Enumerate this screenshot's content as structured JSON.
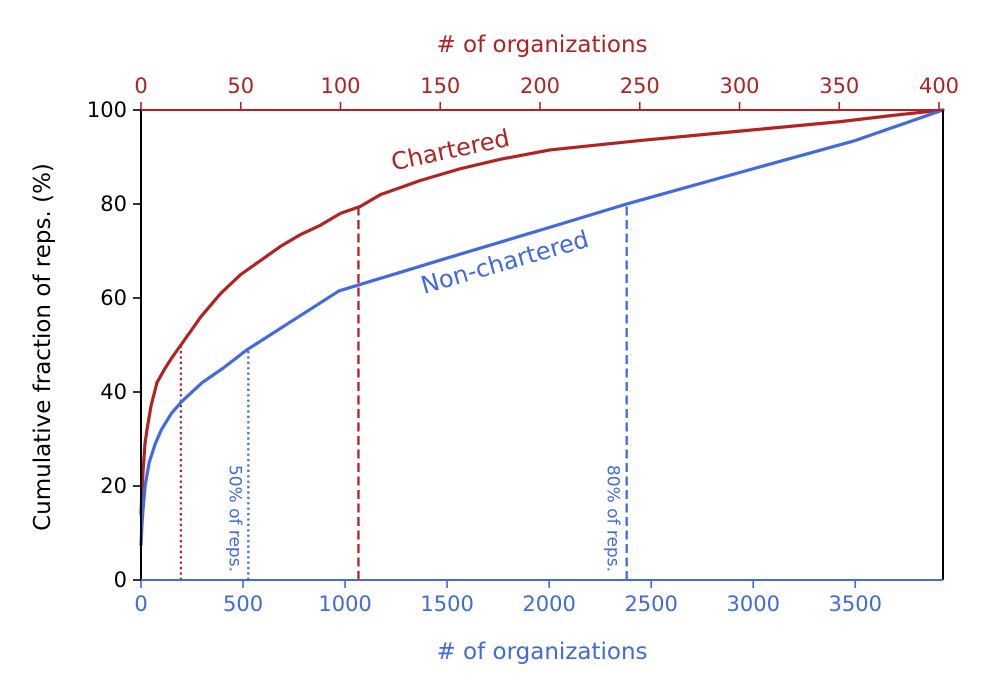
{
  "chart_data": {
    "type": "line",
    "colors": {
      "chartered": "#b22222",
      "non_chartered": "#4169e1",
      "axis": "#000000"
    },
    "x_bottom": {
      "label": "# of organizations",
      "range": [
        0,
        3930
      ],
      "ticks": [
        0,
        500,
        1000,
        1500,
        2000,
        2500,
        3000,
        3500
      ],
      "tick_labels": [
        "0",
        "500",
        "1000",
        "1500",
        "2000",
        "2500",
        "3000",
        "3500"
      ],
      "color": "#4169e1"
    },
    "x_top": {
      "label": "# of organizations",
      "range": [
        0,
        402
      ],
      "ticks": [
        0,
        50,
        100,
        150,
        200,
        250,
        300,
        350,
        400
      ],
      "tick_labels": [
        "0",
        "50",
        "100",
        "150",
        "200",
        "250",
        "300",
        "350",
        "400"
      ],
      "color": "#b22222"
    },
    "y": {
      "label": "Cumulative fraction of reps. (%)",
      "range": [
        0,
        100
      ],
      "ticks": [
        0,
        20,
        40,
        60,
        80,
        100
      ],
      "tick_labels": [
        "0",
        "20",
        "40",
        "60",
        "80",
        "100"
      ]
    },
    "grid": false,
    "series": [
      {
        "key": "chartered",
        "name": "Chartered",
        "axis": "top",
        "x": [
          0,
          0.5,
          1,
          2,
          3,
          5,
          8,
          12,
          15,
          20,
          25,
          30,
          40,
          50,
          60,
          70,
          80,
          90,
          100,
          110,
          120,
          140,
          160,
          180,
          205,
          250,
          300,
          350,
          380,
          402
        ],
        "y": [
          14,
          19,
          23,
          29,
          32,
          37,
          42,
          45,
          47,
          50,
          53,
          56,
          61,
          65,
          68,
          71,
          73.5,
          75.5,
          78,
          79.5,
          82,
          85,
          87.5,
          89.5,
          91.5,
          93.5,
          95.5,
          97.5,
          99,
          100
        ]
      },
      {
        "key": "non_chartered",
        "name": "Non-chartered",
        "axis": "bottom",
        "x": [
          0,
          5,
          10,
          20,
          40,
          70,
          100,
          150,
          200,
          300,
          400,
          520,
          700,
          970,
          1500,
          2000,
          2380,
          3000,
          3500,
          3930
        ],
        "y": [
          7.5,
          12,
          15,
          20,
          25,
          29,
          32,
          35.5,
          38,
          42,
          45,
          49,
          54,
          61.5,
          68.5,
          75,
          80,
          87.5,
          93.5,
          100
        ]
      }
    ],
    "annotations": [
      {
        "key": "chartered_50",
        "axis": "top",
        "x": 20,
        "y_top": 50,
        "style": "dotted",
        "color": "#b22222"
      },
      {
        "key": "chartered_80",
        "axis": "top",
        "x": 109,
        "y_top": 80,
        "style": "dashed",
        "color": "#b22222"
      },
      {
        "key": "non_chartered_50",
        "axis": "bottom",
        "x": 526,
        "y_top": 49,
        "style": "dotted",
        "color": "#4169e1",
        "text": "50% of reps."
      },
      {
        "key": "non_chartered_80",
        "axis": "bottom",
        "x": 2380,
        "y_top": 80,
        "style": "dashed",
        "color": "#4169e1",
        "text": "80% of reps."
      }
    ]
  }
}
